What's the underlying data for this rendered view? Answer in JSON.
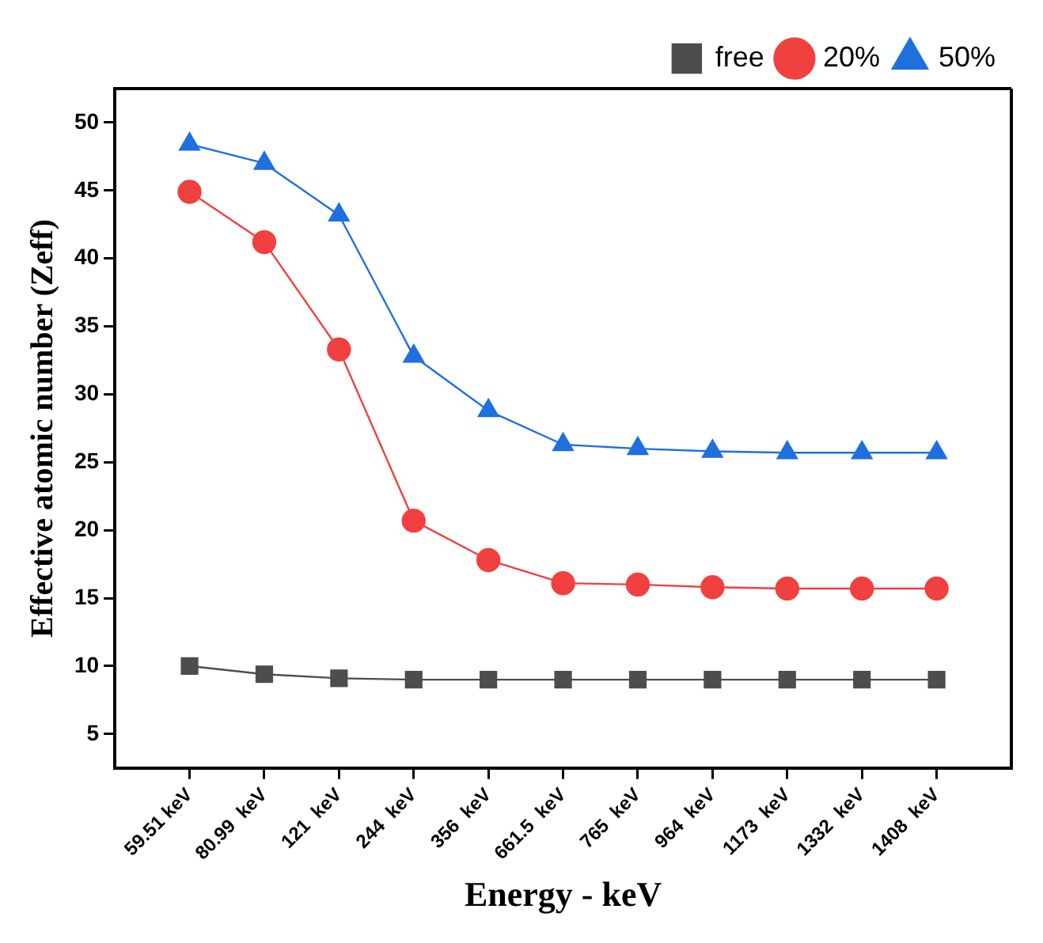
{
  "chart_data": {
    "type": "line",
    "xlabel": "Energy - keV",
    "ylabel": "Effective atomic number (Zeff)",
    "categories": [
      "59.51 keV",
      "80.99  keV",
      "121  keV",
      "244  keV",
      "356  keV",
      "661.5  keV",
      "765  keV",
      "964  keV",
      "1173  keV",
      "1332  keV",
      "1408  keV"
    ],
    "series": [
      {
        "name": "free",
        "color": "#4d4d4d",
        "marker": "square",
        "values": [
          10.0,
          9.4,
          9.1,
          9.0,
          9.0,
          9.0,
          9.0,
          9.0,
          9.0,
          9.0,
          9.0
        ]
      },
      {
        "name": "20%",
        "color": "#f04040",
        "marker": "circle",
        "values": [
          44.9,
          41.2,
          33.3,
          20.7,
          17.8,
          16.1,
          16.0,
          15.8,
          15.7,
          15.7,
          15.7
        ]
      },
      {
        "name": "50%",
        "color": "#1f6fdf",
        "marker": "triangle",
        "values": [
          48.4,
          47.0,
          43.2,
          32.8,
          28.8,
          26.3,
          26.0,
          25.8,
          25.7,
          25.7,
          25.7
        ]
      }
    ],
    "ylim": [
      2.5,
      52.5
    ],
    "yticks": [
      5,
      10,
      15,
      20,
      25,
      30,
      35,
      40,
      45,
      50
    ],
    "grid": false,
    "legend": "top right",
    "line_style": "solid"
  }
}
